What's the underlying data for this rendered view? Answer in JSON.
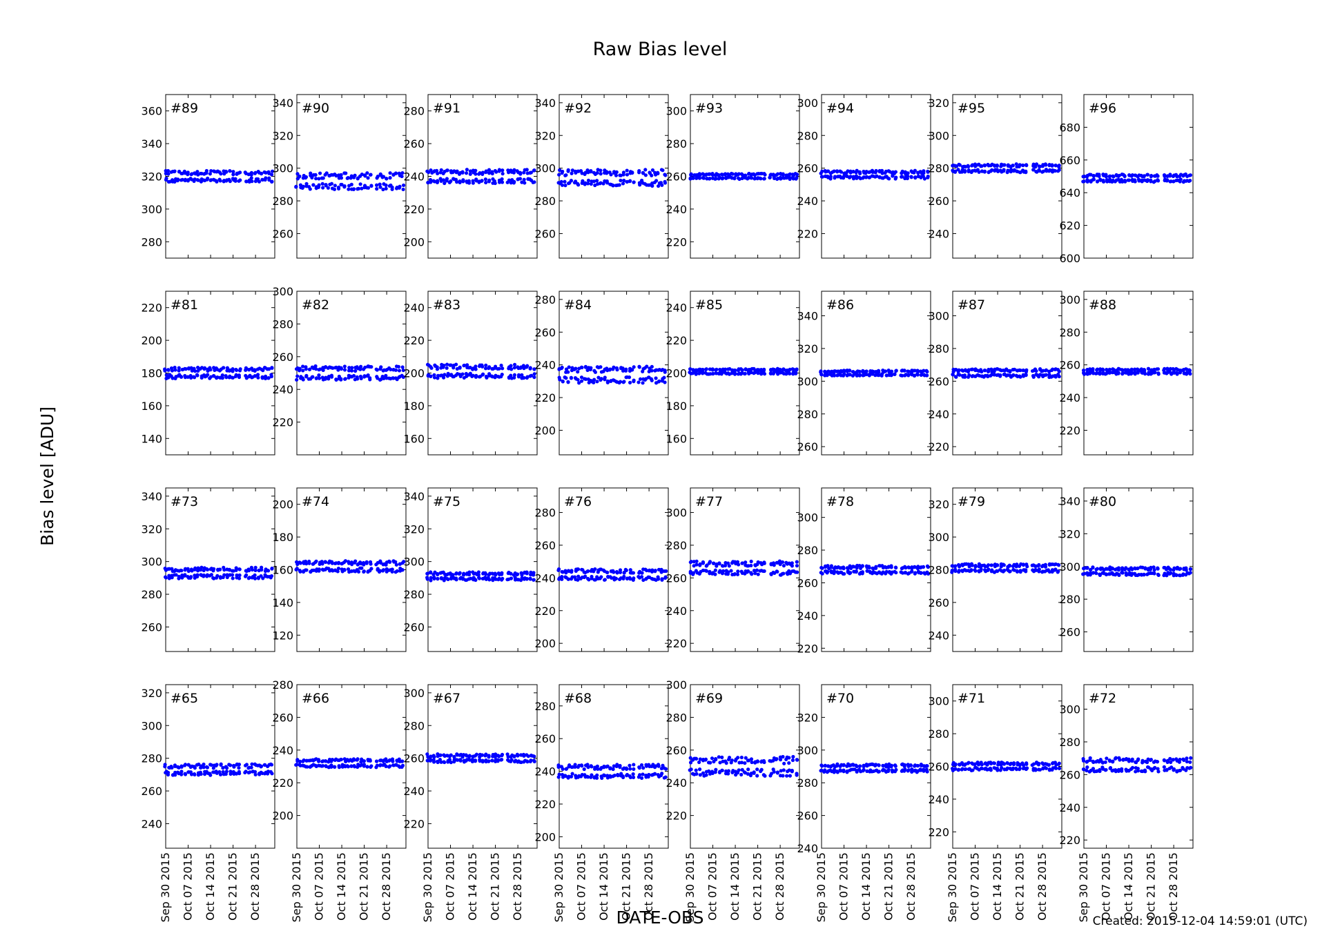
{
  "title": "Raw Bias level",
  "ylabel": "Bias level [ADU]",
  "xlabel": "DATE-OBS",
  "footer": "Created: 2015-12-04 14:59:01 (UTC)",
  "colors": {
    "points": "#0000ff",
    "axes": "#000000",
    "background": "#ffffff"
  },
  "chart_data": {
    "type": "scatter",
    "x_tick_labels": [
      "Sep 30 2015",
      "Oct 07 2015",
      "Oct 14 2015",
      "Oct 21 2015",
      "Oct 28 2015"
    ],
    "x_ticks": [
      "2015-09-30",
      "2015-10-07",
      "2015-10-14",
      "2015-10-21",
      "2015-10-28"
    ],
    "xlim": [
      "2015-09-30",
      "2015-11-03"
    ],
    "observation_dates": [
      "2015-09-30",
      "2015-10-01",
      "2015-10-02",
      "2015-10-03",
      "2015-10-04",
      "2015-10-05",
      "2015-10-06",
      "2015-10-07",
      "2015-10-08",
      "2015-10-09",
      "2015-10-10",
      "2015-10-11",
      "2015-10-12",
      "2015-10-13",
      "2015-10-14",
      "2015-10-15",
      "2015-10-16",
      "2015-10-17",
      "2015-10-18",
      "2015-10-19",
      "2015-10-20",
      "2015-10-21",
      "2015-10-22",
      "2015-10-23",
      "2015-10-25",
      "2015-10-26",
      "2015-10-27",
      "2015-10-28",
      "2015-10-29",
      "2015-10-30",
      "2015-10-31",
      "2015-11-01",
      "2015-11-02"
    ],
    "panels": [
      {
        "label": "#89",
        "ylim": [
          270,
          370
        ],
        "yticks": [
          280,
          300,
          320,
          340,
          360
        ],
        "center": 320,
        "band": 4
      },
      {
        "label": "#90",
        "ylim": [
          245,
          345
        ],
        "yticks": [
          260,
          280,
          300,
          320,
          340
        ],
        "center": 292,
        "band": 6
      },
      {
        "label": "#91",
        "ylim": [
          190,
          290
        ],
        "yticks": [
          200,
          220,
          240,
          260,
          280
        ],
        "center": 240,
        "band": 5
      },
      {
        "label": "#92",
        "ylim": [
          245,
          345
        ],
        "yticks": [
          260,
          280,
          300,
          320,
          340
        ],
        "center": 294,
        "band": 6
      },
      {
        "label": "#93",
        "ylim": [
          210,
          310
        ],
        "yticks": [
          220,
          240,
          260,
          280,
          300
        ],
        "center": 260,
        "band": 2
      },
      {
        "label": "#94",
        "ylim": [
          205,
          305
        ],
        "yticks": [
          220,
          240,
          260,
          280,
          300
        ],
        "center": 256,
        "band": 3
      },
      {
        "label": "#95",
        "ylim": [
          225,
          325
        ],
        "yticks": [
          240,
          260,
          280,
          300,
          320
        ],
        "center": 280,
        "band": 3
      },
      {
        "label": "#96",
        "ylim": [
          600,
          700
        ],
        "yticks": [
          600,
          620,
          640,
          660,
          680
        ],
        "center": 649,
        "band": 3
      },
      {
        "label": "#81",
        "ylim": [
          130,
          230
        ],
        "yticks": [
          140,
          160,
          180,
          200,
          220
        ],
        "center": 180,
        "band": 4
      },
      {
        "label": "#82",
        "ylim": [
          200,
          300
        ],
        "yticks": [
          220,
          240,
          260,
          280,
          300
        ],
        "center": 250,
        "band": 5
      },
      {
        "label": "#83",
        "ylim": [
          150,
          250
        ],
        "yticks": [
          160,
          180,
          200,
          220,
          240
        ],
        "center": 201,
        "band": 5
      },
      {
        "label": "#84",
        "ylim": [
          185,
          285
        ],
        "yticks": [
          200,
          220,
          240,
          260,
          280
        ],
        "center": 234,
        "band": 6
      },
      {
        "label": "#85",
        "ylim": [
          150,
          250
        ],
        "yticks": [
          160,
          180,
          200,
          220,
          240
        ],
        "center": 201,
        "band": 2
      },
      {
        "label": "#86",
        "ylim": [
          255,
          355
        ],
        "yticks": [
          260,
          280,
          300,
          320,
          340
        ],
        "center": 305,
        "band": 2
      },
      {
        "label": "#87",
        "ylim": [
          215,
          315
        ],
        "yticks": [
          220,
          240,
          260,
          280,
          300
        ],
        "center": 265,
        "band": 3
      },
      {
        "label": "#88",
        "ylim": [
          205,
          305
        ],
        "yticks": [
          220,
          240,
          260,
          280,
          300
        ],
        "center": 256,
        "band": 2
      },
      {
        "label": "#73",
        "ylim": [
          245,
          345
        ],
        "yticks": [
          260,
          280,
          300,
          320,
          340
        ],
        "center": 293,
        "band": 4
      },
      {
        "label": "#74",
        "ylim": [
          110,
          210
        ],
        "yticks": [
          120,
          140,
          160,
          180,
          200
        ],
        "center": 162,
        "band": 4
      },
      {
        "label": "#75",
        "ylim": [
          245,
          345
        ],
        "yticks": [
          260,
          280,
          300,
          320,
          340
        ],
        "center": 291,
        "band": 3
      },
      {
        "label": "#76",
        "ylim": [
          195,
          295
        ],
        "yticks": [
          200,
          220,
          240,
          260,
          280
        ],
        "center": 242,
        "band": 4
      },
      {
        "label": "#77",
        "ylim": [
          215,
          315
        ],
        "yticks": [
          220,
          240,
          260,
          280,
          300
        ],
        "center": 266,
        "band": 5
      },
      {
        "label": "#78",
        "ylim": [
          218,
          318
        ],
        "yticks": [
          220,
          240,
          260,
          280,
          300
        ],
        "center": 268,
        "band": 3
      },
      {
        "label": "#79",
        "ylim": [
          230,
          330
        ],
        "yticks": [
          240,
          260,
          280,
          300,
          320
        ],
        "center": 281,
        "band": 3
      },
      {
        "label": "#80",
        "ylim": [
          248,
          348
        ],
        "yticks": [
          260,
          280,
          300,
          320,
          340
        ],
        "center": 297,
        "band": 3
      },
      {
        "label": "#65",
        "ylim": [
          225,
          325
        ],
        "yticks": [
          240,
          260,
          280,
          300,
          320
        ],
        "center": 273,
        "band": 4
      },
      {
        "label": "#66",
        "ylim": [
          180,
          280
        ],
        "yticks": [
          200,
          220,
          240,
          260,
          280
        ],
        "center": 232,
        "band": 3
      },
      {
        "label": "#67",
        "ylim": [
          205,
          305
        ],
        "yticks": [
          220,
          240,
          260,
          280,
          300
        ],
        "center": 260,
        "band": 3
      },
      {
        "label": "#68",
        "ylim": [
          193,
          293
        ],
        "yticks": [
          200,
          220,
          240,
          260,
          280
        ],
        "center": 240,
        "band": 5
      },
      {
        "label": "#69",
        "ylim": [
          200,
          300
        ],
        "yticks": [
          220,
          240,
          260,
          280,
          300
        ],
        "center": 250,
        "band": 7
      },
      {
        "label": "#70",
        "ylim": [
          240,
          340
        ],
        "yticks": [
          240,
          260,
          280,
          300,
          320
        ],
        "center": 289,
        "band": 3
      },
      {
        "label": "#71",
        "ylim": [
          210,
          310
        ],
        "yticks": [
          220,
          240,
          260,
          280,
          300
        ],
        "center": 260,
        "band": 3
      },
      {
        "label": "#72",
        "ylim": [
          215,
          315
        ],
        "yticks": [
          220,
          240,
          260,
          280,
          300
        ],
        "center": 266,
        "band": 5
      }
    ]
  }
}
